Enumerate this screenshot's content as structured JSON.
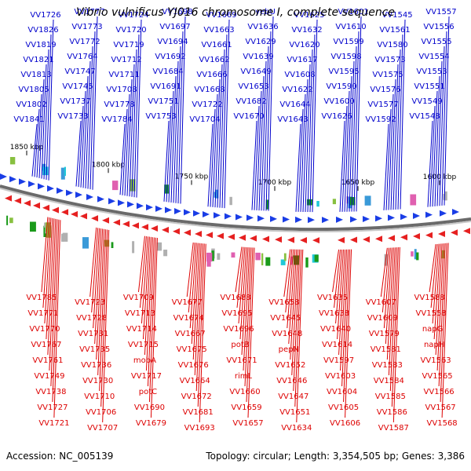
{
  "title": "Vibrio vulnificus YJ016 chromosome I, complete sequence",
  "accession": "Accession: NC_005139",
  "topology": "Topology: circular; Length: 3,354,505 bp; Genes: 3,386",
  "colors": {
    "forward_labels": "#0000cc",
    "reverse_labels": "#dd0000",
    "backbone": "#808080",
    "forward_genes": "#1a3de6",
    "reverse_genes": "#e62020",
    "feature_green": "#1a9a1a",
    "feature_pink": "#e060b0",
    "feature_cyan": "#20c8d8"
  },
  "scale_ticks": [
    "1850 kbp",
    "1800 kbp",
    "1750 kbp",
    "1700 kbp",
    "1650 kbp",
    "1600 kbp"
  ],
  "forward_labels": [
    "VV1557",
    "VV1556",
    "VV1555",
    "VV1554",
    "VV1553",
    "VV1551",
    "VV1549",
    "VV1548",
    "VV1545",
    "VV1561",
    "VV1580",
    "VV1573",
    "VV1575",
    "VV1576",
    "VV1577",
    "VV1592",
    "VV1601",
    "VV1610",
    "VV1599",
    "VV1598",
    "VV1595",
    "VV1590",
    "VV1600",
    "VV1626",
    "VV1625",
    "VV1632",
    "VV1620",
    "VV1617",
    "VV1608",
    "VV1622",
    "VV1644",
    "VV1643",
    "yebU",
    "VV1636",
    "VV1629",
    "VV1639",
    "VV1649",
    "VV1653",
    "VV1682",
    "VV1670",
    "VV1669",
    "VV1663",
    "VV1661",
    "VV1662",
    "VV1666",
    "VV1668",
    "VV1722",
    "VV1704",
    "VV1698",
    "VV1697",
    "VV1694",
    "VV1692",
    "VV1684",
    "VV1691",
    "VV1751",
    "VV1753",
    "VV1724",
    "VV1720",
    "VV1719",
    "VV1712",
    "VV1711",
    "VV1708",
    "VV1778",
    "VV1784",
    "VV1777",
    "VV1773",
    "VV1772",
    "VV1764",
    "VV1747",
    "VV1745",
    "VV1737",
    "VV1733",
    "VV1726",
    "VV1826",
    "VV1819",
    "VV1821",
    "VV1813",
    "VV1805",
    "VV1802",
    "VV1841"
  ],
  "reverse_labels": [
    "VV1785",
    "VV1771",
    "VV1770",
    "VV1767",
    "VV1761",
    "VV1749",
    "VV1738",
    "VV1727",
    "VV1721",
    "VV1723",
    "VV1728",
    "VV1731",
    "VV1735",
    "VV1736",
    "VV1730",
    "VV1710",
    "VV1706",
    "VV1707",
    "VV1709",
    "VV1713",
    "VV1714",
    "VV1715",
    "mobA",
    "VV1717",
    "potC",
    "VV1690",
    "VV1679",
    "VV1677",
    "VV1674",
    "VV1667",
    "VV1675",
    "VV1676",
    "VV1664",
    "VV1672",
    "VV1681",
    "VV1693",
    "VV1688",
    "VV1695",
    "VV1696",
    "potB",
    "VV1671",
    "rimL",
    "VV1660",
    "VV1659",
    "VV1657",
    "VV1658",
    "VV1645",
    "VV1648",
    "pepN",
    "VV1652",
    "VV1646",
    "VV1647",
    "VV1651",
    "VV1634",
    "VV1635",
    "VV1638",
    "VV1640",
    "VV1614",
    "VV1597",
    "VV1603",
    "VV1604",
    "VV1605",
    "VV1606",
    "VV1607",
    "VV1609",
    "VV1579",
    "VV1581",
    "VV1583",
    "VV1584",
    "VV1585",
    "VV1586",
    "VV1587",
    "VV1588",
    "VV1558",
    "napG",
    "napH",
    "VV1563",
    "VV1565",
    "VV1566",
    "VV1567",
    "VV1568"
  ]
}
